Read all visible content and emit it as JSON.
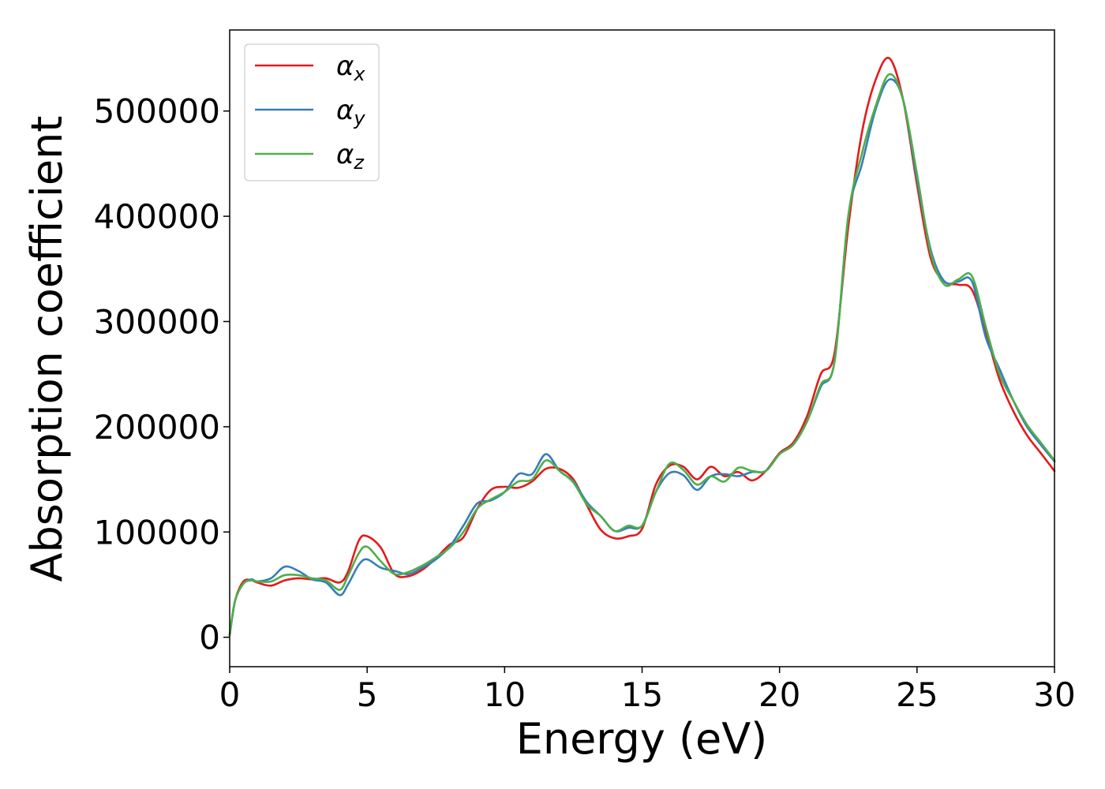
{
  "chart_data": {
    "type": "line",
    "xlabel": "Energy (eV)",
    "ylabel": "Absorption coefficient",
    "xlim": [
      0,
      30
    ],
    "ylim": [
      -28000,
      577000
    ],
    "xticks": [
      0,
      5,
      10,
      15,
      20,
      25,
      30
    ],
    "yticks": [
      0,
      100000,
      200000,
      300000,
      400000,
      500000
    ],
    "legend_position": "upper-left",
    "grid": false,
    "series": [
      {
        "name": "α",
        "subscript": "x",
        "color": "#e41a1c",
        "x": [
          0,
          0.2,
          0.5,
          0.8,
          1.0,
          1.5,
          2.0,
          2.5,
          3.0,
          3.5,
          4.0,
          4.3,
          4.7,
          5.0,
          5.5,
          6.0,
          6.5,
          7.0,
          7.5,
          8.0,
          8.5,
          9.0,
          9.5,
          10.0,
          10.5,
          11.0,
          11.5,
          12.0,
          12.5,
          13.0,
          13.5,
          14.0,
          14.5,
          15.0,
          15.5,
          16.0,
          16.5,
          17.0,
          17.5,
          18.0,
          18.5,
          19.0,
          19.5,
          20.0,
          20.5,
          21.0,
          21.5,
          22.0,
          22.5,
          23.0,
          23.5,
          24.0,
          24.5,
          25.0,
          25.5,
          26.0,
          26.5,
          27.0,
          27.5,
          28.0,
          28.5,
          29.0,
          29.5,
          30.0
        ],
        "y": [
          2000,
          35000,
          53000,
          54000,
          52000,
          49000,
          54000,
          56000,
          55000,
          56000,
          52000,
          62000,
          92000,
          96000,
          85000,
          60000,
          58000,
          64000,
          75000,
          88000,
          95000,
          122000,
          140000,
          143000,
          142000,
          148000,
          160000,
          160000,
          150000,
          125000,
          102000,
          94000,
          96000,
          103000,
          145000,
          163000,
          162000,
          150000,
          162000,
          153000,
          157000,
          149000,
          158000,
          175000,
          185000,
          210000,
          250000,
          270000,
          390000,
          480000,
          530000,
          550000,
          510000,
          430000,
          360000,
          338000,
          335000,
          330000,
          290000,
          245000,
          215000,
          192000,
          175000,
          158000
        ]
      },
      {
        "name": "α",
        "subscript": "y",
        "color": "#377eb8",
        "x": [
          0,
          0.2,
          0.5,
          0.8,
          1.0,
          1.5,
          2.0,
          2.5,
          3.0,
          3.5,
          4.0,
          4.3,
          4.7,
          5.0,
          5.5,
          6.0,
          6.5,
          7.0,
          7.5,
          8.0,
          8.5,
          9.0,
          9.5,
          10.0,
          10.5,
          11.0,
          11.5,
          12.0,
          12.5,
          13.0,
          13.5,
          14.0,
          14.5,
          15.0,
          15.5,
          16.0,
          16.5,
          17.0,
          17.5,
          18.0,
          18.5,
          19.0,
          19.5,
          20.0,
          20.5,
          21.0,
          21.5,
          22.0,
          22.5,
          23.0,
          23.5,
          24.0,
          24.5,
          25.0,
          25.5,
          26.0,
          26.5,
          27.0,
          27.5,
          28.0,
          28.5,
          29.0,
          29.5,
          30.0
        ],
        "y": [
          2000,
          35000,
          51000,
          55000,
          53000,
          56000,
          67000,
          63000,
          55000,
          52000,
          40000,
          50000,
          69000,
          74000,
          66000,
          63000,
          60000,
          66000,
          74000,
          86000,
          106000,
          127000,
          130000,
          138000,
          155000,
          155000,
          174000,
          158000,
          148000,
          128000,
          115000,
          101000,
          104000,
          106000,
          138000,
          156000,
          154000,
          140000,
          153000,
          155000,
          153000,
          157000,
          158000,
          174000,
          183000,
          205000,
          238000,
          262000,
          400000,
          450000,
          502000,
          530000,
          510000,
          435000,
          368000,
          338000,
          338000,
          338000,
          285000,
          255000,
          225000,
          200000,
          183000,
          167000
        ]
      },
      {
        "name": "α",
        "subscript": "z",
        "color": "#4daf4a",
        "x": [
          0,
          0.2,
          0.5,
          0.8,
          1.0,
          1.5,
          2.0,
          2.5,
          3.0,
          3.5,
          4.0,
          4.3,
          4.7,
          5.0,
          5.5,
          6.0,
          6.5,
          7.0,
          7.5,
          8.0,
          8.5,
          9.0,
          9.5,
          10.0,
          10.5,
          11.0,
          11.5,
          12.0,
          12.5,
          13.0,
          13.5,
          14.0,
          14.5,
          15.0,
          15.5,
          16.0,
          16.5,
          17.0,
          17.5,
          18.0,
          18.5,
          19.0,
          19.5,
          20.0,
          20.5,
          21.0,
          21.5,
          22.0,
          22.5,
          23.0,
          23.5,
          24.0,
          24.5,
          25.0,
          25.5,
          26.0,
          26.5,
          27.0,
          27.5,
          28.0,
          28.5,
          29.0,
          29.5,
          30.0
        ],
        "y": [
          2000,
          35000,
          51000,
          54000,
          53000,
          53000,
          59000,
          59000,
          56000,
          54000,
          45000,
          58000,
          80000,
          86000,
          72000,
          60000,
          62000,
          68000,
          76000,
          85000,
          100000,
          122000,
          131000,
          138000,
          148000,
          150000,
          168000,
          158000,
          147000,
          126000,
          115000,
          101000,
          106000,
          106000,
          138000,
          165000,
          159000,
          145000,
          153000,
          148000,
          161000,
          158000,
          158000,
          174000,
          183000,
          205000,
          240000,
          262000,
          400000,
          460000,
          505000,
          535000,
          510000,
          440000,
          365000,
          335000,
          340000,
          343000,
          295000,
          250000,
          225000,
          202000,
          185000,
          168000
        ]
      }
    ]
  }
}
